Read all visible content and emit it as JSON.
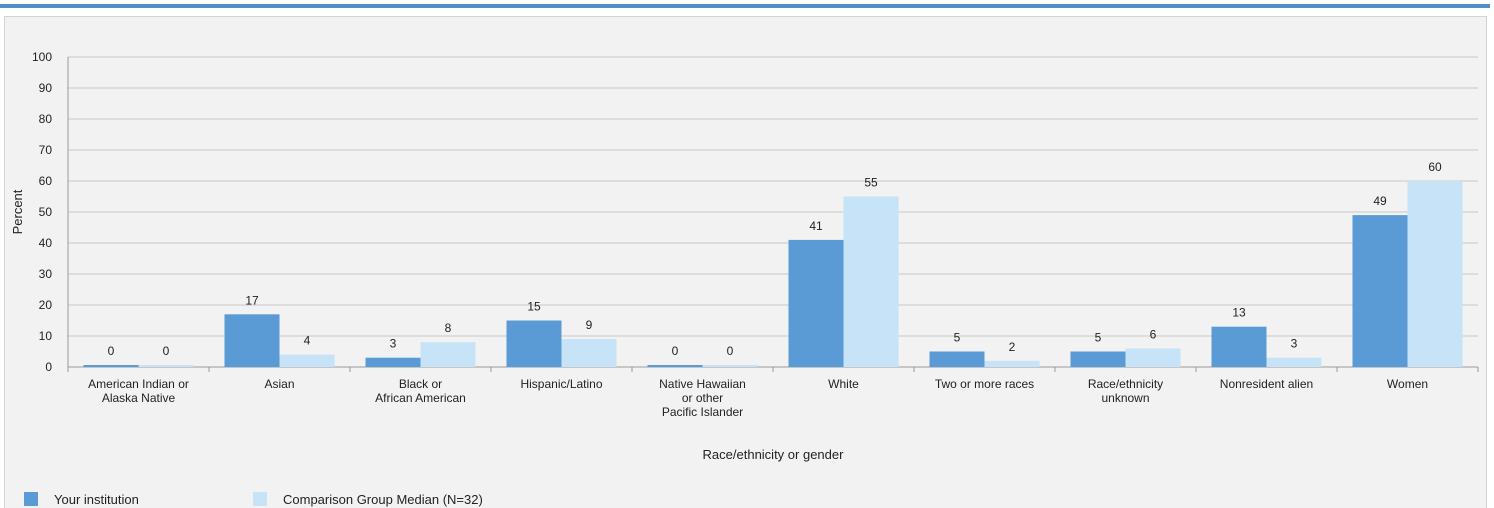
{
  "chart_data": {
    "type": "bar",
    "title": "",
    "xlabel": "Race/ethnicity or gender",
    "ylabel": "Percent",
    "ylim": [
      0,
      100
    ],
    "yticks": [
      0,
      10,
      20,
      30,
      40,
      50,
      60,
      70,
      80,
      90,
      100
    ],
    "categories": [
      [
        "American Indian or",
        "Alaska Native"
      ],
      [
        "Asian"
      ],
      [
        "Black or",
        "African American"
      ],
      [
        "Hispanic/Latino"
      ],
      [
        "Native Hawaiian",
        "or other",
        "Pacific Islander"
      ],
      [
        "White"
      ],
      [
        "Two or more races"
      ],
      [
        "Race/ethnicity",
        "unknown"
      ],
      [
        "Nonresident alien"
      ],
      [
        "Women"
      ]
    ],
    "series": [
      {
        "name": "Your institution",
        "color": "#5b9bd5",
        "values": [
          0,
          17,
          3,
          15,
          0,
          41,
          5,
          5,
          13,
          49
        ],
        "labels": [
          "0",
          "17",
          "3",
          "15",
          "0",
          "41",
          "5",
          "5",
          "13",
          "49"
        ]
      },
      {
        "name": "Comparison Group Median (N=32)",
        "color": "#c6e3f7",
        "values": [
          0,
          4,
          8,
          9,
          0,
          55,
          2,
          6,
          3,
          60
        ],
        "labels": [
          "0",
          "4",
          "8",
          "9",
          "0",
          "55",
          "2",
          "6",
          "3",
          "60"
        ]
      }
    ],
    "grid": true,
    "legend_position": "bottom-left"
  }
}
